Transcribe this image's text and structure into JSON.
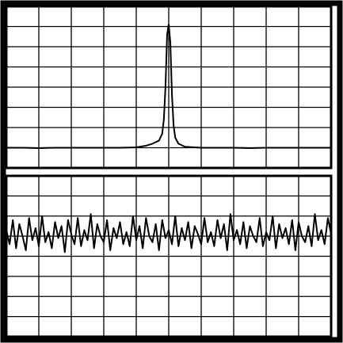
{
  "chart_data": [
    {
      "type": "line",
      "xlim": [
        0,
        10
      ],
      "ylim": [
        0,
        8
      ],
      "xticks": [
        0,
        1,
        2,
        3,
        4,
        5,
        6,
        7,
        8,
        9,
        10
      ],
      "yticks": [
        0,
        1,
        2,
        3,
        4,
        5,
        6,
        7,
        8
      ],
      "grid": true,
      "series": [
        {
          "color": "#000000",
          "x": [
            0,
            0.5,
            1,
            1.5,
            2,
            2.5,
            3,
            3.5,
            4,
            4.3,
            4.5,
            4.7,
            4.8,
            4.85,
            4.9,
            4.95,
            5.0,
            5.05,
            5.1,
            5.15,
            5.2,
            5.3,
            5.5,
            6,
            6.5,
            7,
            7.5,
            8,
            8.5,
            9,
            9.5,
            10
          ],
          "values": [
            1.0,
            1.0,
            0.98,
            1.0,
            1.0,
            1.0,
            1.0,
            1.0,
            1.02,
            1.1,
            1.2,
            1.35,
            1.7,
            2.4,
            4.0,
            6.6,
            7.1,
            6.2,
            3.6,
            2.1,
            1.5,
            1.2,
            1.05,
            1.0,
            1.0,
            1.0,
            0.98,
            1.0,
            1.0,
            1.0,
            1.0,
            1.0
          ]
        }
      ]
    },
    {
      "type": "line",
      "xlim": [
        0,
        10
      ],
      "ylim": [
        0,
        8
      ],
      "xticks": [
        0,
        1,
        2,
        3,
        4,
        5,
        6,
        7,
        8,
        9,
        10
      ],
      "yticks": [
        0,
        1,
        2,
        3,
        4,
        5,
        6,
        7,
        8
      ],
      "grid": true,
      "series": [
        {
          "color": "#000000",
          "x": [
            0,
            0.1,
            0.2,
            0.3,
            0.4,
            0.5,
            0.6,
            0.7,
            0.8,
            0.9,
            1,
            1.1,
            1.2,
            1.3,
            1.4,
            1.5,
            1.6,
            1.7,
            1.8,
            1.9,
            2,
            2.1,
            2.2,
            2.3,
            2.4,
            2.5,
            2.6,
            2.7,
            2.8,
            2.9,
            3,
            3.1,
            3.2,
            3.3,
            3.4,
            3.5,
            3.6,
            3.7,
            3.8,
            3.9,
            4,
            4.1,
            4.2,
            4.3,
            4.4,
            4.5,
            4.6,
            4.7,
            4.8,
            4.9,
            5,
            5.1,
            5.2,
            5.3,
            5.4,
            5.5,
            5.6,
            5.7,
            5.8,
            5.9,
            6,
            6.1,
            6.2,
            6.3,
            6.4,
            6.5,
            6.6,
            6.7,
            6.8,
            6.9,
            7,
            7.1,
            7.2,
            7.3,
            7.4,
            7.5,
            7.6,
            7.7,
            7.8,
            7.9,
            8,
            8.1,
            8.2,
            8.3,
            8.4,
            8.5,
            8.6,
            8.7,
            8.8,
            8.9,
            9,
            9.1,
            9.2,
            9.3,
            9.4,
            9.5,
            9.6,
            9.7,
            9.8,
            9.9,
            10
          ],
          "values": [
            5.3,
            4.6,
            5.8,
            4.4,
            5.6,
            5.0,
            4.3,
            5.9,
            4.8,
            5.4,
            4.5,
            6.0,
            4.7,
            5.2,
            4.4,
            5.7,
            4.9,
            5.5,
            4.2,
            5.8,
            5.1,
            4.6,
            5.9,
            4.5,
            5.3,
            4.8,
            6.1,
            4.4,
            5.6,
            5.0,
            4.7,
            5.8,
            4.3,
            5.4,
            4.9,
            5.7,
            4.6,
            5.2,
            4.5,
            6.0,
            4.8,
            5.5,
            4.4,
            5.9,
            5.0,
            4.7,
            5.6,
            4.3,
            5.8,
            4.9,
            5.3,
            4.6,
            6.0,
            4.5,
            5.4,
            4.8,
            5.7,
            4.4,
            5.5,
            5.1,
            4.6,
            5.9,
            4.7,
            5.2,
            4.5,
            5.8,
            4.9,
            5.6,
            4.3,
            6.1,
            4.8,
            5.3,
            4.6,
            5.7,
            4.4,
            5.5,
            5.0,
            4.7,
            5.9,
            4.5,
            5.2,
            4.8,
            6.0,
            4.4,
            5.6,
            4.9,
            5.4,
            4.6,
            5.8,
            4.3,
            5.7,
            5.0,
            4.7,
            5.5,
            4.5,
            6.1,
            4.8,
            5.3,
            4.6,
            5.9,
            5.1
          ]
        }
      ]
    }
  ]
}
